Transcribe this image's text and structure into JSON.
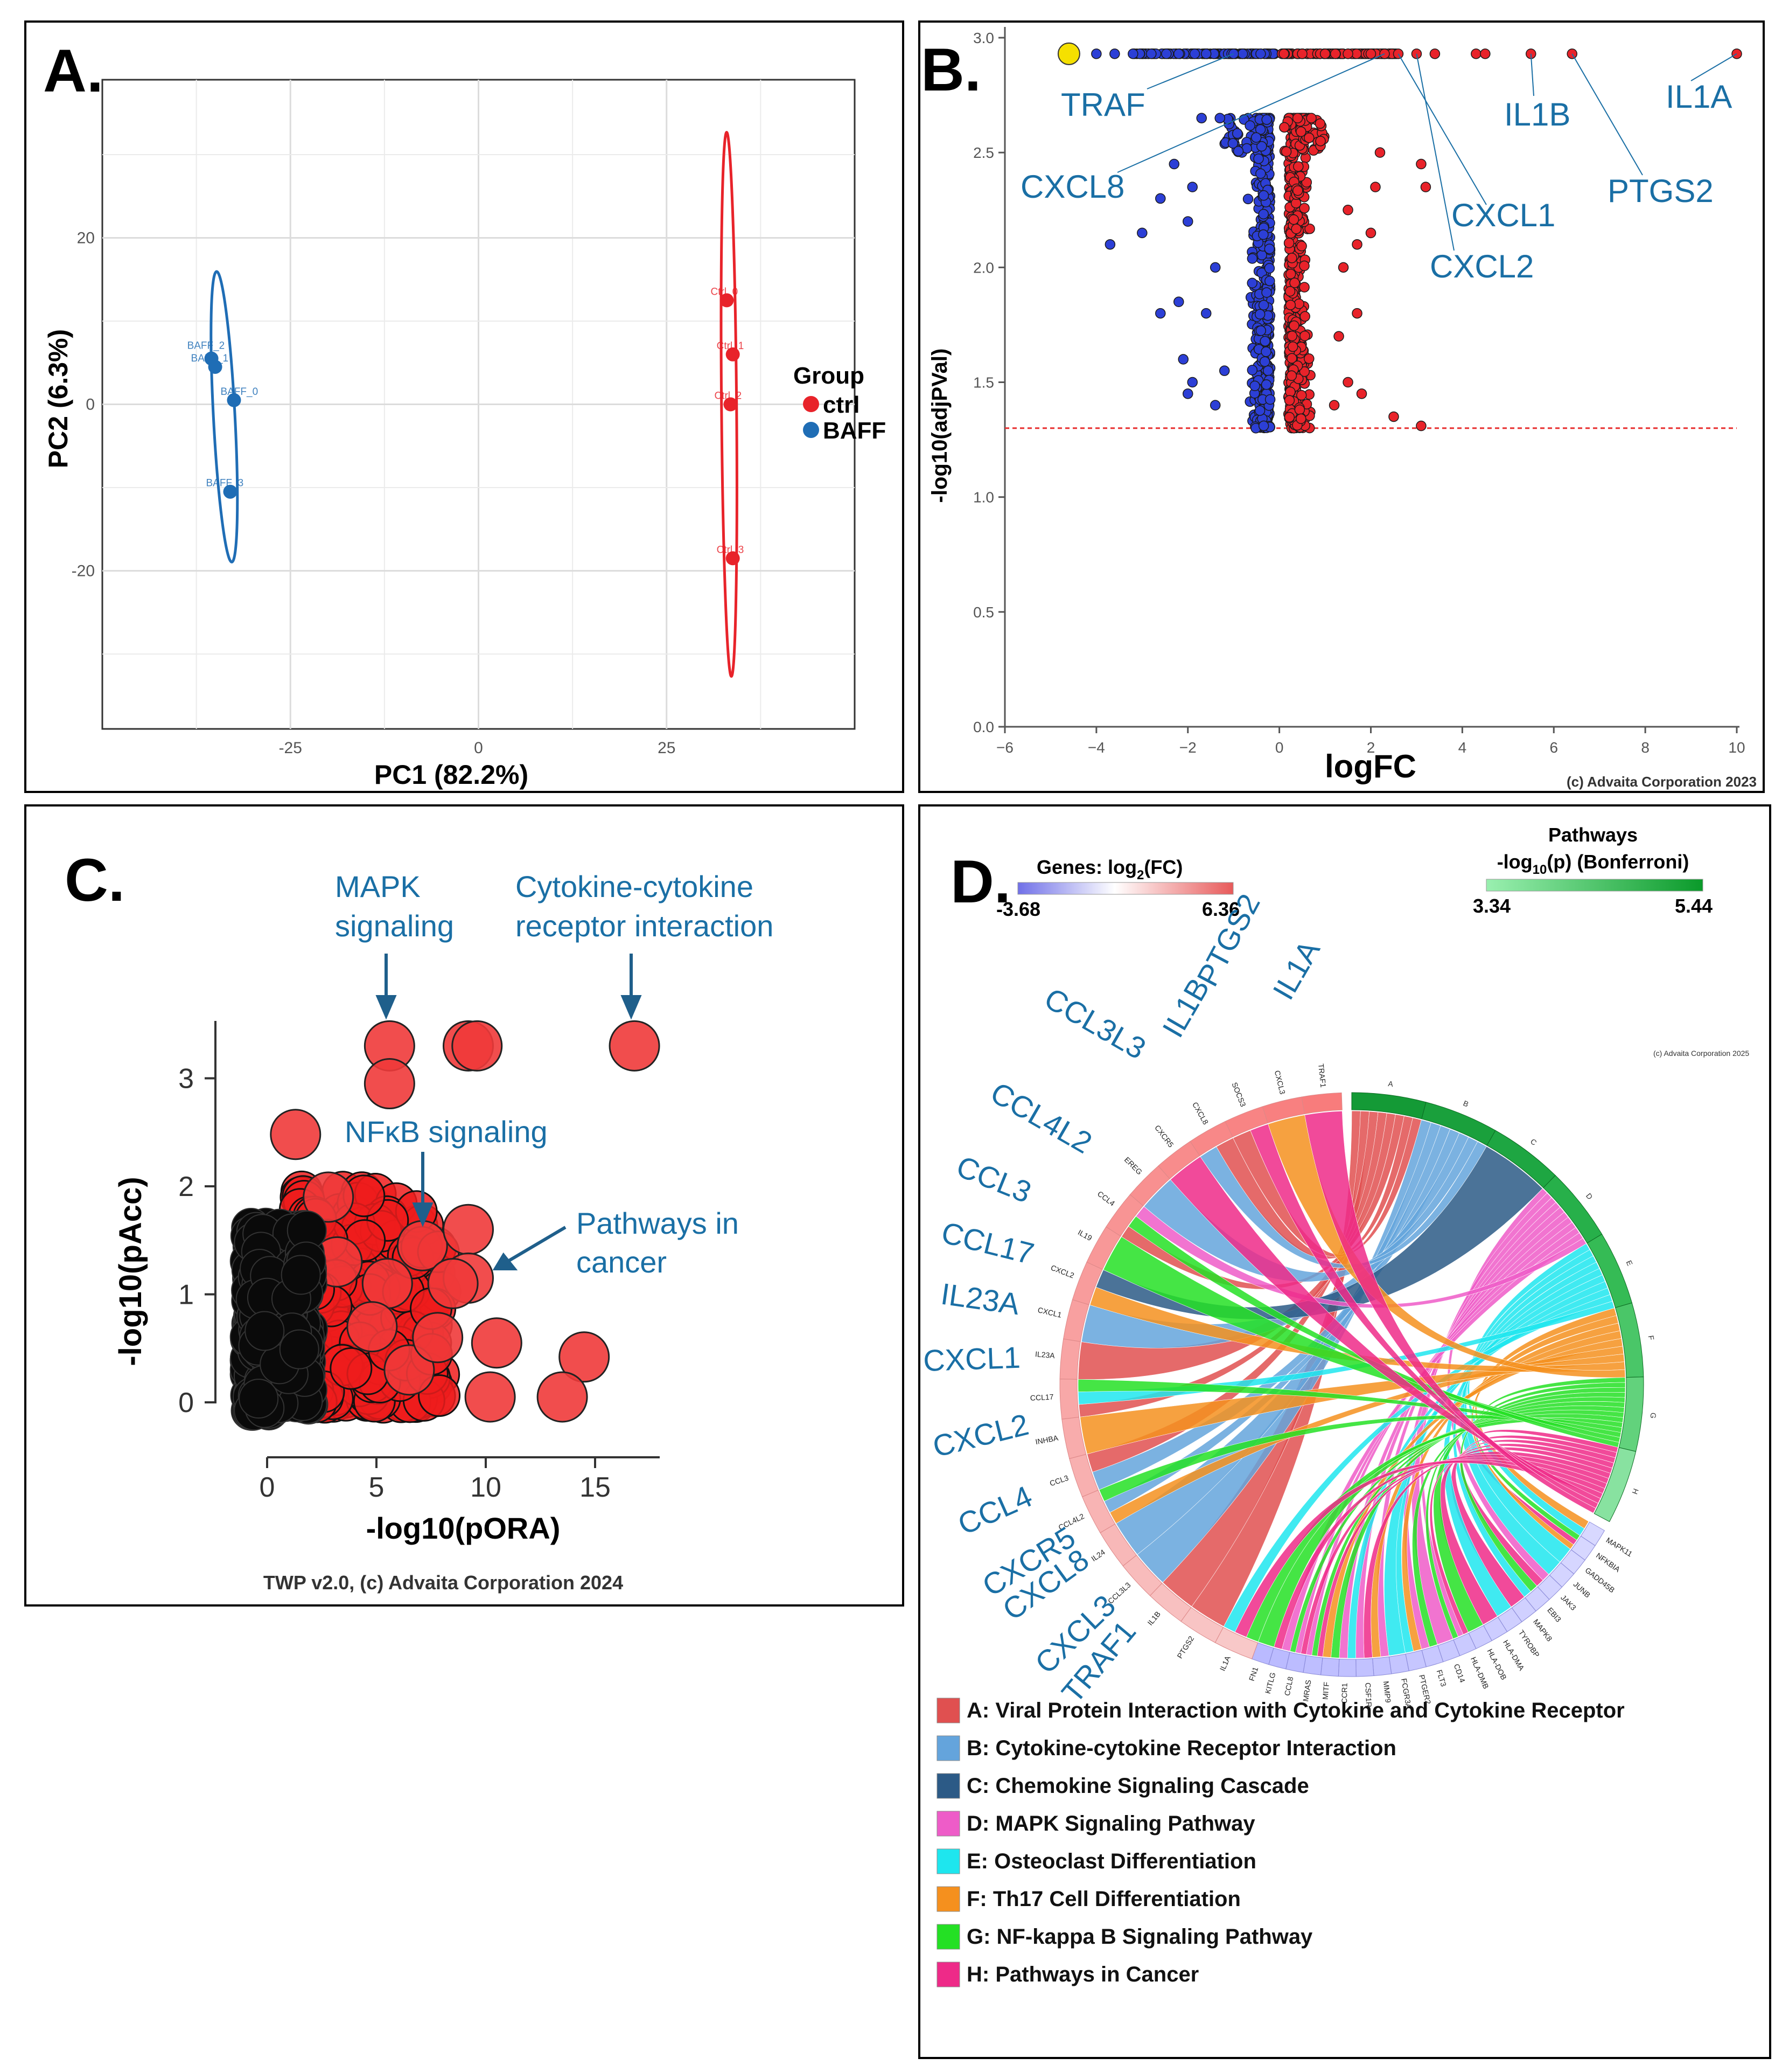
{
  "colors": {
    "red": "#e8232a",
    "blue": "#1f6db5",
    "blue_label": "#1a6fa5",
    "dark_blue": "#1f5f8b",
    "yellow": "#f5e000"
  },
  "panel_a": {
    "letter": "A.",
    "chart_data": {
      "type": "scatter",
      "xlabel": "PC1 (82.2%)",
      "ylabel": "PC2 (6.3%)",
      "xlim": [
        -50,
        50
      ],
      "ylim": [
        -39,
        39
      ],
      "xticks": [
        "-25",
        "0",
        "25"
      ],
      "yticks": [
        "20",
        "0",
        "-20"
      ],
      "legend_title": "Group",
      "legend": [
        "ctrl",
        "BAFF"
      ],
      "series": [
        {
          "name": "ctrl",
          "color": "#e8232a",
          "points": [
            {
              "label": "Ctrl_0",
              "x": 33,
              "y": 12.5
            },
            {
              "label": "Ctrl_1",
              "x": 33.8,
              "y": 6
            },
            {
              "label": "Ctrl_2",
              "x": 33.5,
              "y": 0
            },
            {
              "label": "Ctrl_3",
              "x": 33.8,
              "y": -18.5
            }
          ]
        },
        {
          "name": "BAFF",
          "color": "#1f6db5",
          "points": [
            {
              "label": "BAFF_2",
              "x": -35.5,
              "y": 5.5
            },
            {
              "label": "BAFF_1",
              "x": -35,
              "y": 4.5
            },
            {
              "label": "BAFF_0",
              "x": -32.5,
              "y": 0.5
            },
            {
              "label": "BAFF_3",
              "x": -33,
              "y": -10.5
            }
          ]
        }
      ]
    }
  },
  "panel_b": {
    "letter": "B.",
    "copyright": "(c) Advaita Corporation 2023",
    "chart_data": {
      "type": "scatter",
      "xlabel": "logFC",
      "ylabel": "-log10(adjPVal)",
      "xlim": [
        -6,
        10
      ],
      "ylim": [
        0,
        3
      ],
      "xticks": [
        "−6",
        "−4",
        "−2",
        "0",
        "2",
        "4",
        "6",
        "8",
        "10"
      ],
      "yticks": [
        "0.0",
        "0.5",
        "1.0",
        "1.5",
        "2.0",
        "2.5",
        "3.0"
      ],
      "threshold_y": 1.3,
      "highlight_point": {
        "x": -4.6,
        "y": 2.93
      },
      "outlier_points_up": [
        [
          0.1,
          2.93
        ],
        [
          0.5,
          2.93
        ],
        [
          1,
          2.93
        ],
        [
          1.5,
          2.93
        ],
        [
          2,
          2.93
        ],
        [
          2.3,
          2.93
        ],
        [
          2.6,
          2.93
        ],
        [
          3,
          2.93
        ],
        [
          3.4,
          2.93
        ],
        [
          4.3,
          2.93
        ],
        [
          4.5,
          2.93
        ],
        [
          5.5,
          2.93
        ],
        [
          6.4,
          2.93
        ],
        [
          10,
          2.93
        ],
        [
          0.4,
          2.65
        ],
        [
          0.7,
          2.65
        ],
        [
          0.9,
          2.55
        ],
        [
          2.2,
          2.5
        ],
        [
          2.1,
          2.35
        ],
        [
          3.1,
          2.45
        ],
        [
          3.2,
          2.35
        ],
        [
          1.5,
          2.25
        ],
        [
          1.7,
          2.1
        ],
        [
          2,
          2.15
        ],
        [
          1.4,
          2.0
        ],
        [
          1.7,
          1.8
        ],
        [
          1.3,
          1.7
        ],
        [
          1.5,
          1.5
        ],
        [
          1.8,
          1.45
        ],
        [
          2.5,
          1.35
        ],
        [
          3.1,
          1.31
        ],
        [
          1.2,
          1.4
        ]
      ],
      "outlier_points_down": [
        [
          -1,
          2.93
        ],
        [
          -1.6,
          2.93
        ],
        [
          -2.2,
          2.93
        ],
        [
          -2.8,
          2.93
        ],
        [
          -3.2,
          2.93
        ],
        [
          -3.6,
          2.93
        ],
        [
          -4.0,
          2.93
        ],
        [
          -1.3,
          2.65
        ],
        [
          -1.7,
          2.65
        ],
        [
          -2.3,
          2.45
        ],
        [
          -1.9,
          2.35
        ],
        [
          -2.6,
          2.3
        ],
        [
          -3.0,
          2.15
        ],
        [
          -3.7,
          2.1
        ],
        [
          -2.0,
          2.2
        ],
        [
          -1.4,
          2.0
        ],
        [
          -2.2,
          1.85
        ],
        [
          -2.6,
          1.8
        ],
        [
          -2.1,
          1.6
        ],
        [
          -1.9,
          1.5
        ],
        [
          -1.4,
          1.4
        ],
        [
          -2.0,
          1.45
        ],
        [
          -1.2,
          1.55
        ],
        [
          -1.6,
          1.8
        ]
      ],
      "labels": [
        {
          "text": "TRAF",
          "point": [
            -1,
            2.93
          ]
        },
        {
          "text": "CXCL8",
          "point": [
            2.3,
            2.93
          ]
        },
        {
          "text": "CXCL1",
          "point": [
            2.6,
            2.93
          ]
        },
        {
          "text": "CXCL2",
          "point": [
            3.0,
            2.93
          ]
        },
        {
          "text": "IL1B",
          "point": [
            5.5,
            2.93
          ]
        },
        {
          "text": "PTGS2",
          "point": [
            6.4,
            2.93
          ]
        },
        {
          "text": "IL1A",
          "point": [
            10,
            2.93
          ]
        }
      ]
    }
  },
  "panel_c": {
    "letter": "C.",
    "copyright": "TWP v2.0, (c) Advaita Corporation 2024",
    "chart_data": {
      "type": "scatter",
      "xlabel": "-log10(pORA)",
      "ylabel": "-log10(pAcc)",
      "xlim": [
        -1,
        18
      ],
      "ylim": [
        -0.1,
        3.5
      ],
      "xticks": [
        "0",
        "5",
        "10",
        "15"
      ],
      "yticks": [
        "0",
        "1",
        "2",
        "3"
      ],
      "highlighted_points": [
        {
          "x": 5.6,
          "y": 3.3
        },
        {
          "x": 5.6,
          "y": 2.95
        },
        {
          "x": 9.2,
          "y": 3.3
        },
        {
          "x": 9.6,
          "y": 3.3
        },
        {
          "x": 16.8,
          "y": 3.3
        },
        {
          "x": 1.3,
          "y": 2.48
        },
        {
          "x": 7.1,
          "y": 1.45
        },
        {
          "x": 9.2,
          "y": 1.6
        },
        {
          "x": 9.2,
          "y": 1.15
        },
        {
          "x": 8.5,
          "y": 1.1
        },
        {
          "x": 10.5,
          "y": 0.55
        },
        {
          "x": 14.5,
          "y": 0.42
        },
        {
          "x": 13.5,
          "y": 0.05
        },
        {
          "x": 10.2,
          "y": 0.05
        },
        {
          "x": 6.5,
          "y": 0.3
        },
        {
          "x": 5.5,
          "y": 1.1
        },
        {
          "x": 3.2,
          "y": 1.3
        },
        {
          "x": 2.8,
          "y": 1.9
        },
        {
          "x": 4.8,
          "y": 0.7
        },
        {
          "x": 7.8,
          "y": 0.6
        }
      ],
      "annotations": [
        {
          "line1": "MAPK",
          "line2": "signaling"
        },
        {
          "line1": "Cytokine-cytokine",
          "line2": "receptor interaction"
        },
        {
          "line1": "NFκB signaling",
          "line2": ""
        },
        {
          "line1": "Pathways in",
          "line2": "cancer"
        }
      ]
    }
  },
  "panel_d": {
    "letter": "D.",
    "copyright": "(c) Advaita Corporation 2025",
    "genes_legend": {
      "title": "Genes: log",
      "sub": "2",
      "suffix": "(FC)",
      "min": "-3.68",
      "max": "6.36"
    },
    "pathways_legend": {
      "title1": "Pathways",
      "title2a": "-log",
      "title2sub": "10",
      "title2b": "(p) (Bonferroni)",
      "min": "3.34",
      "max": "5.44"
    },
    "pathway_letters": [
      "A",
      "B",
      "C",
      "D",
      "E",
      "F",
      "G",
      "H"
    ],
    "genes_up": [
      "IL1A",
      "PTGS2",
      "IL1B",
      "CCL3L3",
      "IL24",
      "CCL4L2",
      "CCL3",
      "INHBA",
      "CCL17",
      "IL23A",
      "CXCL1",
      "CXCL2",
      "IL19",
      "CCL4",
      "EREG",
      "CXCR5",
      "CXCL8",
      "SOCS3",
      "CXCL3",
      "TRAF1"
    ],
    "genes_down": [
      "MAPK11",
      "NFKBIA",
      "GADD45B",
      "JUNB",
      "JAK3",
      "EBI3",
      "MAPK8",
      "TYROBP",
      "HLA-DMA",
      "HLA-DOB",
      "HLA-DMB",
      "CD14",
      "FLT3",
      "PTGER2",
      "FCGR3A",
      "MMP9",
      "CSF1R",
      "CCR1",
      "MITF",
      "MRAS",
      "CCL8",
      "KITLG",
      "FN1"
    ],
    "big_labels": [
      "IL1A",
      "PTGS2",
      "IL1B",
      "CCL3L3",
      "CCL4L2",
      "CCL3",
      "CCL17",
      "IL23A",
      "CXCL1",
      "CXCL2",
      "CCL4",
      "CXCR5",
      "CXCL8",
      "CXCL3",
      "TRAF1"
    ],
    "legend": [
      {
        "key": "A",
        "text": "A: Viral Protein Interaction with Cytokine and Cytokine Receptor",
        "color": "#e05050"
      },
      {
        "key": "B",
        "text": "B: Cytokine-cytokine Receptor Interaction",
        "color": "#64a4dc"
      },
      {
        "key": "C",
        "text": "C: Chemokine Signaling Cascade",
        "color": "#2c5a86"
      },
      {
        "key": "D",
        "text": "D: MAPK Signaling Pathway",
        "color": "#ee5cc8"
      },
      {
        "key": "E",
        "text": "E: Osteoclast Differentiation",
        "color": "#1ee6ee"
      },
      {
        "key": "F",
        "text": "F: Th17 Cell Differentiation",
        "color": "#f5901e"
      },
      {
        "key": "G",
        "text": "G: NF-kappa B Signaling Pathway",
        "color": "#24e024"
      },
      {
        "key": "H",
        "text": "H: Pathways in Cancer",
        "color": "#ee2a88"
      }
    ]
  }
}
